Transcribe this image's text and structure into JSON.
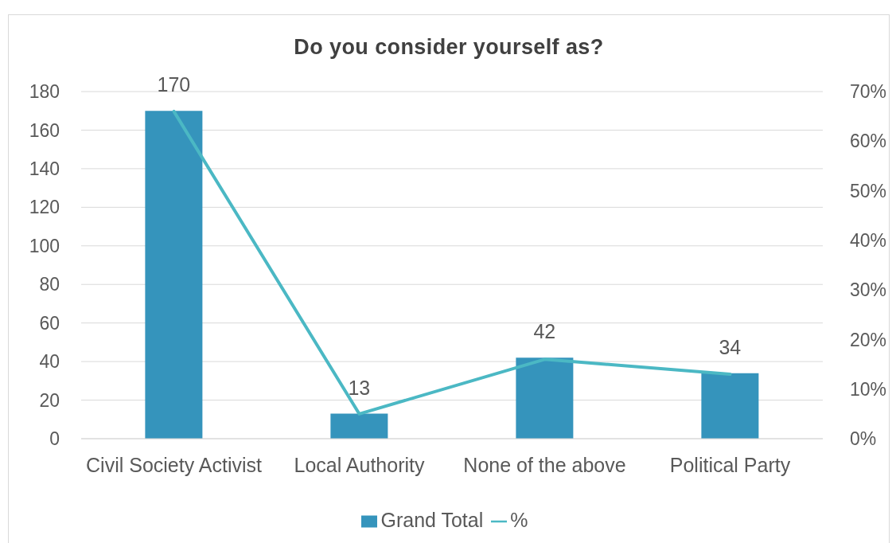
{
  "chart_data": {
    "type": "bar",
    "title": "Do you consider yourself as?",
    "categories": [
      "Civil Society Activist",
      "Local Authority",
      "None of the above",
      "Political Party"
    ],
    "series": [
      {
        "name": "Grand Total",
        "color": "#3594bc",
        "values": [
          170,
          13,
          42,
          34
        ],
        "value_labels": [
          "170",
          "13",
          "42",
          "34"
        ]
      },
      {
        "name": "%",
        "type": "line",
        "axis": "y2",
        "color": "#4bb8c4",
        "values": [
          66,
          5,
          16,
          13
        ]
      }
    ],
    "ylim": [
      0,
      180
    ],
    "yticks": [
      0,
      20,
      40,
      60,
      80,
      100,
      120,
      140,
      160,
      180
    ],
    "y2lim": [
      0,
      70
    ],
    "y2ticks": [
      {
        "value": 0,
        "label": "0%"
      },
      {
        "value": 10,
        "label": "10%"
      },
      {
        "value": 20,
        "label": "20%"
      },
      {
        "value": 30,
        "label": "30%"
      },
      {
        "value": 40,
        "label": "40%"
      },
      {
        "value": 50,
        "label": "50%"
      },
      {
        "value": 60,
        "label": "60%"
      },
      {
        "value": 70,
        "label": "70%"
      }
    ],
    "grid": "y",
    "legend": "bottom",
    "marker": "none",
    "line_style": "solid"
  }
}
